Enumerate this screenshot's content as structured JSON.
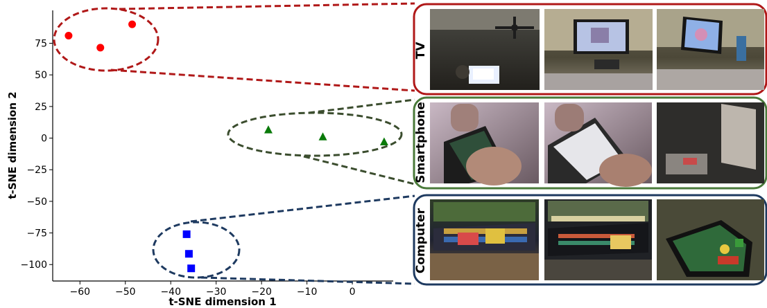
{
  "chart_data": {
    "type": "scatter",
    "xlabel": "t-SNE dimension 1",
    "ylabel": "t-SNE dimension 2",
    "xlim": [
      -66,
      9
    ],
    "ylim": [
      -113,
      101
    ],
    "xticks": [
      -60,
      -50,
      -40,
      -30,
      -20,
      -10,
      0
    ],
    "yticks": [
      75,
      50,
      25,
      0,
      -25,
      -50,
      -75,
      -100
    ],
    "grid": false,
    "series": [
      {
        "name": "TV",
        "marker": "circle",
        "color": "#ff0000",
        "ellipse_color": "#b01818",
        "points": [
          [
            -62.5,
            81
          ],
          [
            -55.5,
            71.5
          ],
          [
            -48.5,
            90
          ]
        ]
      },
      {
        "name": "Smartphone",
        "marker": "triangle",
        "color": "#0a7a0a",
        "ellipse_color": "#3b4d2e",
        "points": [
          [
            -18.5,
            6.5
          ],
          [
            -6.5,
            1
          ],
          [
            7,
            -3
          ]
        ]
      },
      {
        "name": "Computer",
        "marker": "square",
        "color": "#0000ff",
        "ellipse_color": "#1e3a60",
        "points": [
          [
            -36.5,
            -76
          ],
          [
            -36,
            -91.5
          ],
          [
            -35.5,
            -103
          ]
        ]
      }
    ]
  },
  "panels": [
    {
      "label": "TV",
      "border": "#b01818",
      "images": [
        "tv-room-ceiling-fan-frame",
        "tv-wall-mounted-screen-frame",
        "tv-screen-closeup-frame"
      ]
    },
    {
      "label": "Smartphone",
      "border": "#4a7a3a",
      "images": [
        "phone-hand-screen-frame",
        "phone-feedback-screen-frame",
        "phone-dark-room-frame"
      ]
    },
    {
      "label": "Computer",
      "border": "#1e3a60",
      "images": [
        "laptop-keyboard-frame",
        "laptop-dark-keyboard-frame",
        "laptop-game-screen-frame"
      ]
    }
  ]
}
